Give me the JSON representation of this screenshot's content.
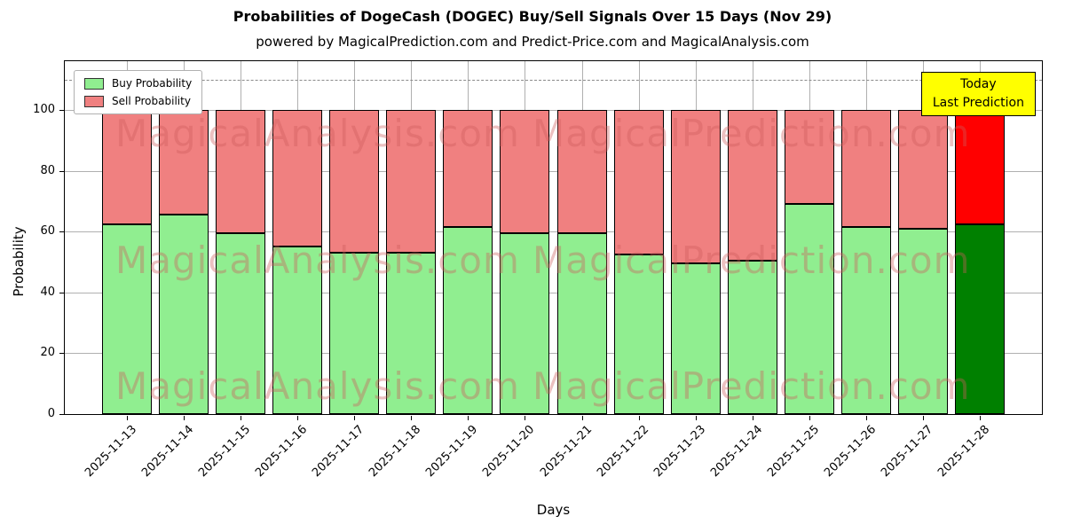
{
  "figure": {
    "title": "Probabilities of DogeCash (DOGEC) Buy/Sell Signals Over 15 Days (Nov 29)",
    "subtitle": "powered by MagicalPrediction.com and Predict-Price.com and MagicalAnalysis.com"
  },
  "axes": {
    "xlabel": "Days",
    "ylabel": "Probability",
    "yticks": [
      0,
      20,
      40,
      60,
      80,
      100
    ],
    "ymax": 116,
    "dashed_line_y": 110
  },
  "legend": {
    "items": [
      {
        "label": "Buy Probability",
        "color": "#90EE90"
      },
      {
        "label": "Sell Probability",
        "color": "#F08080"
      }
    ]
  },
  "annotation": {
    "line1": "Today",
    "line2": "Last Prediction",
    "bg": "#FFFF00"
  },
  "watermarks": {
    "left": "MagicalAnalysis.com",
    "right": "MagicalPrediction.com"
  },
  "colors": {
    "buy": "#90EE90",
    "sell": "#F08080",
    "today_buy": "#008000",
    "today_sell": "#FF0000",
    "grid": "#b0b0b0",
    "watermark": "rgba(205,92,92,0.38)"
  },
  "chart_data": {
    "type": "bar",
    "stacked": true,
    "title": "Probabilities of DogeCash (DOGEC) Buy/Sell Signals Over 15 Days (Nov 29)",
    "xlabel": "Days",
    "ylabel": "Probability",
    "ylim": [
      0,
      116
    ],
    "grid": true,
    "legend_position": "upper left",
    "categories": [
      "2025-11-13",
      "2025-11-14",
      "2025-11-15",
      "2025-11-16",
      "2025-11-17",
      "2025-11-18",
      "2025-11-19",
      "2025-11-20",
      "2025-11-21",
      "2025-11-22",
      "2025-11-23",
      "2025-11-24",
      "2025-11-25",
      "2025-11-26",
      "2025-11-27",
      "2025-11-28"
    ],
    "series": [
      {
        "name": "Buy Probability",
        "values": [
          62.5,
          65.5,
          59.5,
          55,
          53,
          53,
          61.5,
          59.5,
          59.5,
          52.5,
          49.5,
          50.5,
          69,
          61.5,
          61,
          62.5
        ]
      },
      {
        "name": "Sell Probability",
        "values": [
          37.5,
          34.5,
          40.5,
          45,
          47,
          47,
          38.5,
          40.5,
          40.5,
          47.5,
          50.5,
          49.5,
          31,
          38.5,
          39,
          37.5
        ]
      }
    ],
    "today_index": 15
  }
}
